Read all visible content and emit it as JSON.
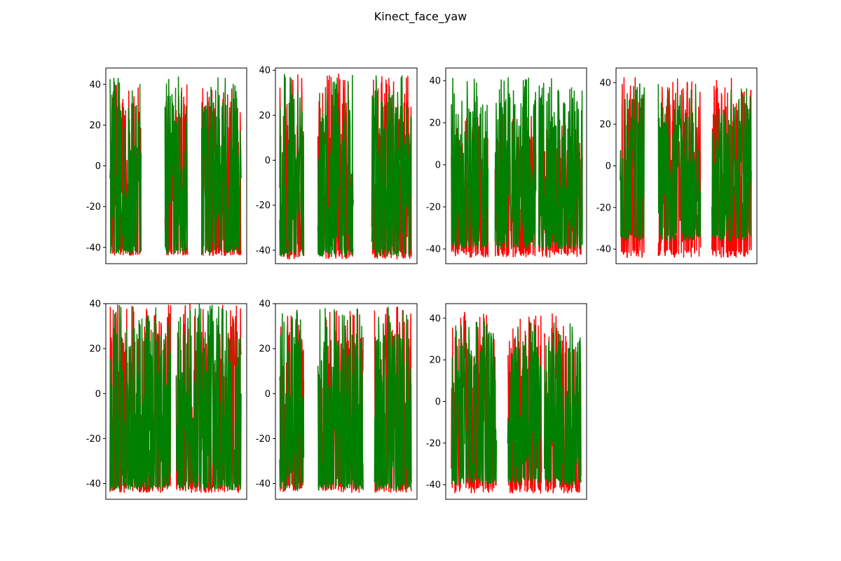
{
  "figure": {
    "title": "Kinect_face_yaw"
  },
  "colors": {
    "series_a": "#ff0000",
    "series_b": "#008000"
  },
  "chart_data": [
    {
      "type": "line",
      "panel": 1,
      "grid": false,
      "ylim": [
        -48,
        48
      ],
      "yticks": [
        -40,
        -20,
        0,
        20,
        40
      ],
      "xticks": [],
      "segments_x": [
        [
          0.03,
          0.25
        ],
        [
          0.42,
          0.58
        ],
        [
          0.68,
          0.96
        ]
      ],
      "series": [
        {
          "color": "#ff0000",
          "y_min": -44,
          "y_max": 40,
          "seed": 11
        },
        {
          "color": "#008000",
          "y_min": -43,
          "y_max": 44,
          "seed": 12
        }
      ]
    },
    {
      "type": "line",
      "panel": 2,
      "grid": false,
      "ylim": [
        -46,
        41
      ],
      "yticks": [
        -40,
        -20,
        0,
        20,
        40
      ],
      "xticks": [],
      "segments_x": [
        [
          0.03,
          0.2
        ],
        [
          0.3,
          0.55
        ],
        [
          0.68,
          0.96
        ]
      ],
      "series": [
        {
          "color": "#ff0000",
          "y_min": -44,
          "y_max": 39,
          "seed": 21
        },
        {
          "color": "#008000",
          "y_min": -43,
          "y_max": 39,
          "seed": 22
        }
      ]
    },
    {
      "type": "line",
      "panel": 3,
      "grid": false,
      "ylim": [
        -47,
        46
      ],
      "yticks": [
        -40,
        -20,
        0,
        20,
        40
      ],
      "xticks": [],
      "segments_x": [
        [
          0.04,
          0.3
        ],
        [
          0.35,
          0.64
        ],
        [
          0.66,
          0.97
        ]
      ],
      "series": [
        {
          "color": "#ff0000",
          "y_min": -44,
          "y_max": 24,
          "seed": 31
        },
        {
          "color": "#008000",
          "y_min": -40,
          "y_max": 43,
          "seed": 32
        }
      ]
    },
    {
      "type": "line",
      "panel": 4,
      "grid": false,
      "ylim": [
        -47,
        47
      ],
      "yticks": [
        -40,
        -20,
        0,
        20,
        40
      ],
      "xticks": [],
      "segments_x": [
        [
          0.03,
          0.2
        ],
        [
          0.3,
          0.6
        ],
        [
          0.68,
          0.96
        ]
      ],
      "series": [
        {
          "color": "#ff0000",
          "y_min": -44,
          "y_max": 43,
          "seed": 41
        },
        {
          "color": "#008000",
          "y_min": -36,
          "y_max": 40,
          "seed": 42
        }
      ]
    },
    {
      "type": "line",
      "panel": 5,
      "grid": false,
      "ylim": [
        -47,
        40
      ],
      "yticks": [
        -40,
        -20,
        0,
        20,
        40
      ],
      "xticks": [],
      "segments_x": [
        [
          0.03,
          0.3
        ],
        [
          0.28,
          0.46
        ],
        [
          0.5,
          0.96
        ]
      ],
      "series": [
        {
          "color": "#ff0000",
          "y_min": -44,
          "y_max": 40,
          "seed": 51
        },
        {
          "color": "#008000",
          "y_min": -43,
          "y_max": 40,
          "seed": 52
        }
      ]
    },
    {
      "type": "line",
      "panel": 6,
      "grid": false,
      "ylim": [
        -47,
        40
      ],
      "yticks": [
        -40,
        -20,
        0,
        20,
        40
      ],
      "xticks": [],
      "segments_x": [
        [
          0.03,
          0.2
        ],
        [
          0.3,
          0.62
        ],
        [
          0.7,
          0.96
        ]
      ],
      "series": [
        {
          "color": "#ff0000",
          "y_min": -44,
          "y_max": 39,
          "seed": 61
        },
        {
          "color": "#008000",
          "y_min": -43,
          "y_max": 39,
          "seed": 62
        }
      ]
    },
    {
      "type": "line",
      "panel": 7,
      "grid": false,
      "ylim": [
        -47,
        47
      ],
      "yticks": [
        -40,
        -20,
        0,
        20,
        40
      ],
      "xticks": [],
      "segments_x": [
        [
          0.04,
          0.36
        ],
        [
          0.44,
          0.68
        ],
        [
          0.7,
          0.96
        ]
      ],
      "series": [
        {
          "color": "#ff0000",
          "y_min": -44,
          "y_max": 43,
          "seed": 71
        },
        {
          "color": "#008000",
          "y_min": -40,
          "y_max": 39,
          "seed": 72
        }
      ]
    }
  ]
}
